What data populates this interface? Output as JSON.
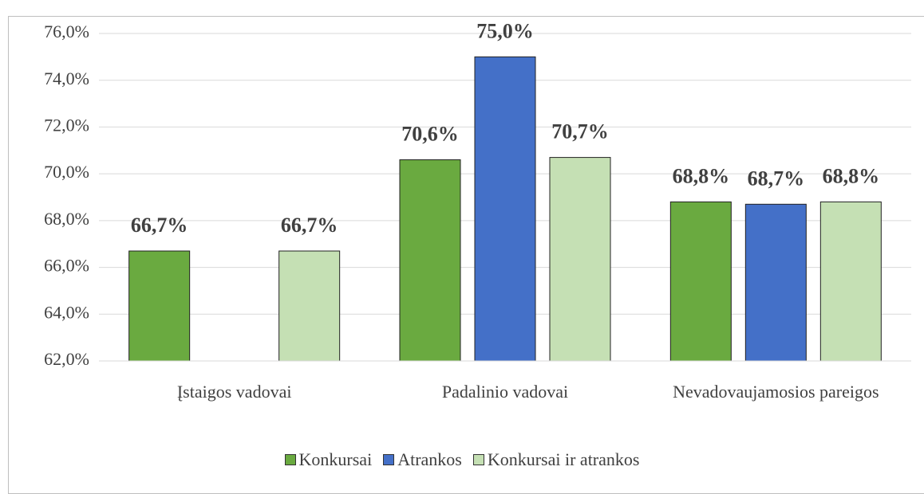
{
  "chart_data": {
    "type": "bar",
    "categories": [
      "Įstaigos vadovai",
      "Padalinio vadovai",
      "Nevadovaujamosios pareigos"
    ],
    "series": [
      {
        "name": "Konkursai",
        "color": "#6aaa40",
        "values": [
          66.7,
          70.6,
          68.8
        ],
        "value_labels": [
          "66,7%",
          "70,6%",
          "68,8%"
        ]
      },
      {
        "name": "Atrankos",
        "color": "#4470c8",
        "values": [
          null,
          75.0,
          68.7
        ],
        "value_labels": [
          null,
          "75,0%",
          "68,7%"
        ]
      },
      {
        "name": "Konkursai ir atrankos",
        "color": "#c5e0b4",
        "values": [
          66.7,
          70.7,
          68.8
        ],
        "value_labels": [
          "66,7%",
          "70,7%",
          "68,8%"
        ]
      }
    ],
    "ylim": [
      62,
      76
    ],
    "yticks": [
      {
        "value": 62,
        "label": "62,0%"
      },
      {
        "value": 64,
        "label": "64,0%"
      },
      {
        "value": 66,
        "label": "66,0%"
      },
      {
        "value": 68,
        "label": "68,0%"
      },
      {
        "value": 70,
        "label": "70,0%"
      },
      {
        "value": 72,
        "label": "72,0%"
      },
      {
        "value": 74,
        "label": "74,0%"
      },
      {
        "value": 76,
        "label": "76,0%"
      }
    ],
    "grid": true,
    "legend": "bottom"
  }
}
